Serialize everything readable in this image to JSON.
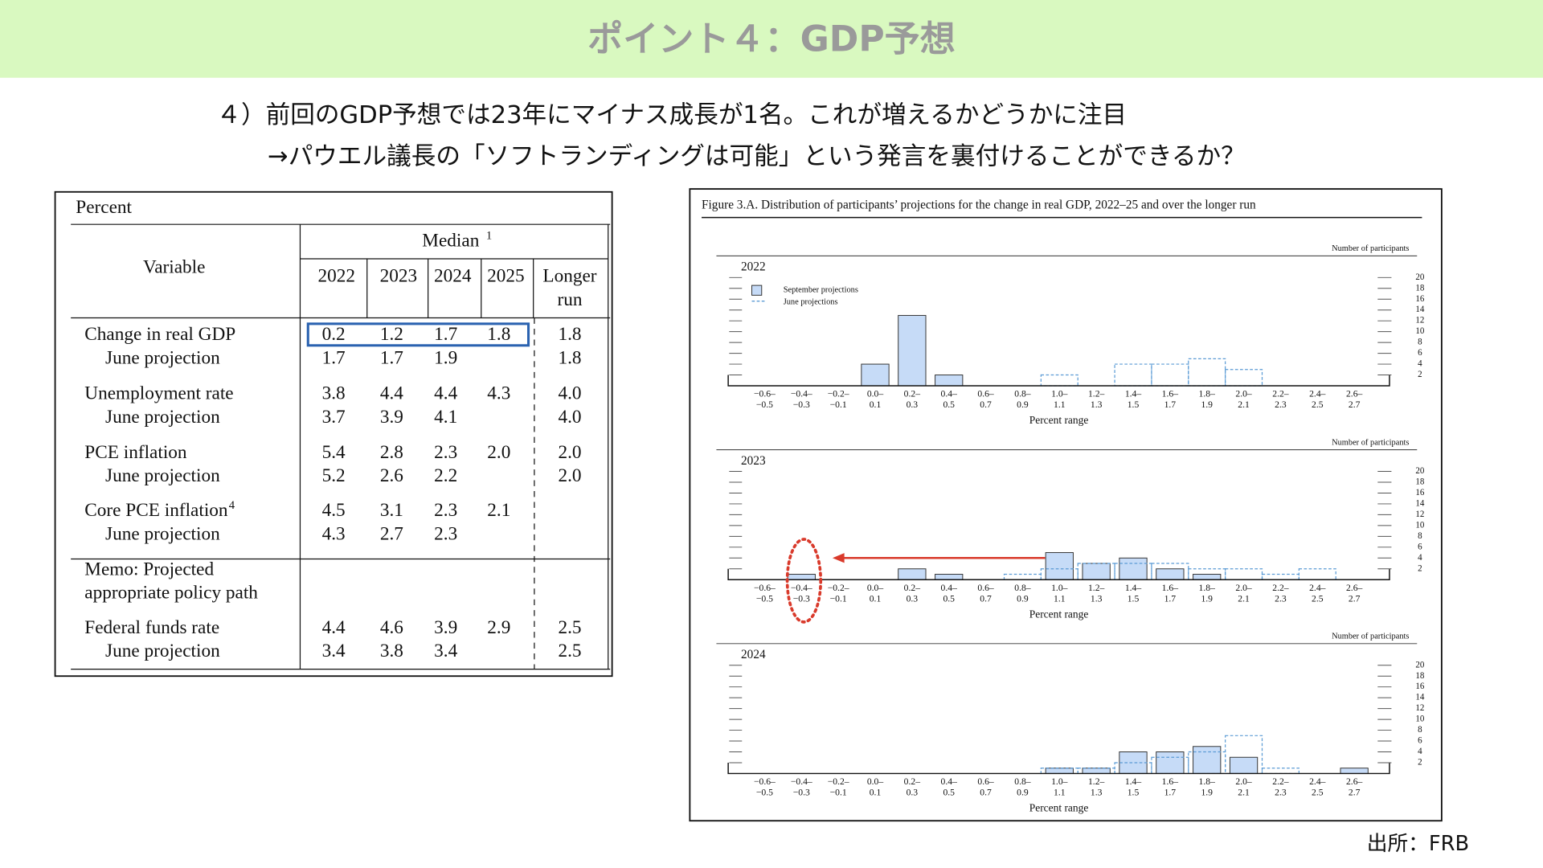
{
  "header": {
    "title": "ポイント４：GDP予想"
  },
  "subtitle": [
    "４）前回のGDP予想では23年にマイナス成長が1名。これが増えるかどうかに注目",
    "→パウエル議長の「ソフトランディングは可能」という発言を裏付けることができるか？"
  ],
  "table": {
    "unit": "Percent",
    "variable_header": "Variable",
    "median_header": {
      "text": "Median",
      "note": "1"
    },
    "columns": [
      "2022",
      "2023",
      "2024",
      "2025",
      [
        "Longer",
        "run"
      ]
    ],
    "rows": [
      {
        "label": [
          "Change in real GDP"
        ],
        "values": [
          "0.2",
          "1.2",
          "1.7",
          "1.8",
          "1.8"
        ],
        "june": {
          "label": "June projection",
          "values": [
            "1.7",
            "1.7",
            "1.9",
            null,
            "1.8"
          ]
        }
      },
      {
        "label": [
          "Unemployment rate"
        ],
        "values": [
          "3.8",
          "4.4",
          "4.4",
          "4.3",
          "4.0"
        ],
        "june": {
          "label": "June projection",
          "values": [
            "3.7",
            "3.9",
            "4.1",
            null,
            "4.0"
          ]
        }
      },
      {
        "label": [
          "PCE inflation"
        ],
        "values": [
          "5.4",
          "2.8",
          "2.3",
          "2.0",
          "2.0"
        ],
        "june": {
          "label": "June projection",
          "values": [
            "5.2",
            "2.6",
            "2.2",
            null,
            "2.0"
          ]
        }
      },
      {
        "label": [
          "Core PCE inflation"
        ],
        "note": "4",
        "values": [
          "4.5",
          "3.1",
          "2.3",
          "2.1",
          null
        ],
        "june": {
          "label": "June projection",
          "values": [
            "4.3",
            "2.7",
            "2.3",
            null,
            null
          ]
        }
      },
      {
        "label": [
          "Memo: Projected",
          "appropriate policy path"
        ]
      },
      {
        "label": [
          "Federal funds rate"
        ],
        "values": [
          "4.4",
          "4.6",
          "3.9",
          "2.9",
          "2.5"
        ],
        "june": {
          "label": "June projection",
          "values": [
            "3.4",
            "3.8",
            "3.4",
            null,
            "2.5"
          ]
        }
      }
    ]
  },
  "figure": {
    "type": "bar",
    "title": "Figure 3.A. Distribution of participants’ projections for the change in real GDP, 2022–25 and over the longer run",
    "y_label": "Number of participants",
    "x_label": "Percent range",
    "legend": [
      "September projections",
      "June projections"
    ],
    "september_color": "#c6dbf7",
    "june_color": "#5b9bd5",
    "bins": [
      [
        "−0.6–",
        "−0.5"
      ],
      [
        "−0.4–",
        "−0.3"
      ],
      [
        "−0.2–",
        "−0.1"
      ],
      [
        "0.0–",
        "0.1"
      ],
      [
        "0.2–",
        "0.3"
      ],
      [
        "0.4–",
        "0.5"
      ],
      [
        "0.6–",
        "0.7"
      ],
      [
        "0.8–",
        "0.9"
      ],
      [
        "1.0–",
        "1.1"
      ],
      [
        "1.2–",
        "1.3"
      ],
      [
        "1.4–",
        "1.5"
      ],
      [
        "1.6–",
        "1.7"
      ],
      [
        "1.8–",
        "1.9"
      ],
      [
        "2.0–",
        "2.1"
      ],
      [
        "2.2–",
        "2.3"
      ],
      [
        "2.4–",
        "2.5"
      ],
      [
        "2.6–",
        "2.7"
      ]
    ],
    "ylim": [
      0,
      20
    ],
    "yticks": [
      2,
      4,
      6,
      8,
      10,
      12,
      14,
      16,
      18,
      20
    ],
    "panels": [
      {
        "year": "2022",
        "september": [
          0,
          0,
          0,
          4,
          13,
          2,
          0,
          0,
          0,
          0,
          0,
          0,
          0,
          0,
          0,
          0,
          0
        ],
        "june": [
          0,
          0,
          0,
          0,
          0,
          0,
          0,
          0,
          2,
          0,
          4,
          4,
          5,
          3,
          0,
          0,
          0
        ]
      },
      {
        "year": "2023",
        "september": [
          0,
          1,
          0,
          0,
          2,
          1,
          0,
          0,
          5,
          3,
          4,
          2,
          1,
          0,
          0,
          0,
          0
        ],
        "june": [
          0,
          0,
          0,
          0,
          0,
          0,
          0,
          1,
          2,
          3,
          3,
          3,
          2,
          2,
          1,
          2,
          0
        ]
      },
      {
        "year": "2024",
        "september": [
          0,
          0,
          0,
          0,
          0,
          0,
          0,
          0,
          1,
          1,
          4,
          4,
          5,
          3,
          0,
          0,
          1
        ],
        "june": [
          0,
          0,
          0,
          0,
          0,
          0,
          0,
          0,
          1,
          1,
          2,
          3,
          4,
          7,
          1,
          0,
          0
        ]
      }
    ]
  },
  "source": "出所：FRB"
}
